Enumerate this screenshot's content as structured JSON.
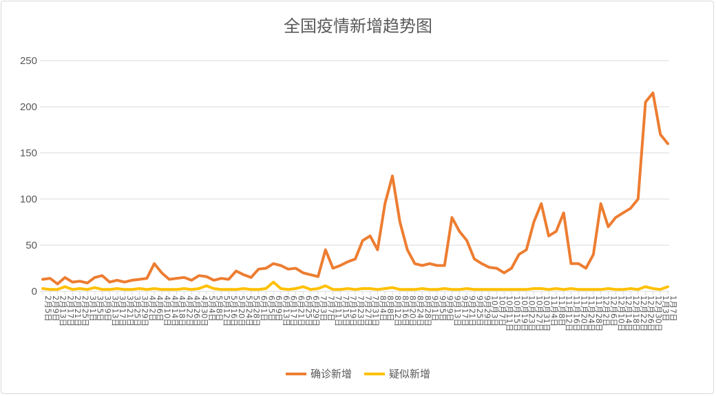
{
  "chart_data": {
    "type": "line",
    "title": "全国疫情新增趋势图",
    "xlabel": "",
    "ylabel": "",
    "ylim": [
      0,
      250
    ],
    "yticks": [
      0,
      50,
      100,
      150,
      200,
      250
    ],
    "grid": true,
    "legend_position": "bottom",
    "categories": [
      "2月5日",
      "2月9日",
      "2月13日",
      "2月17日",
      "2月21日",
      "2月25日",
      "3月1日",
      "3月5日",
      "3月9日",
      "3月13日",
      "3月17日",
      "3月21日",
      "3月25日",
      "3月29日",
      "4月2日",
      "4月6日",
      "4月10日",
      "4月14日",
      "4月18日",
      "4月22日",
      "4月26日",
      "4月30日",
      "5月4日",
      "5月8日",
      "5月12日",
      "5月16日",
      "5月20日",
      "5月24日",
      "5月28日",
      "6月1日",
      "6月5日",
      "6月9日",
      "6月13日",
      "6月17日",
      "6月21日",
      "6月25日",
      "6月29日",
      "7月3日",
      "7月7日",
      "7月11日",
      "7月15日",
      "7月19日",
      "7月23日",
      "7月27日",
      "7月31日",
      "8月4日",
      "8月8日",
      "8月12日",
      "8月16日",
      "8月20日",
      "8月24日",
      "8月28日",
      "9月1日",
      "9月5日",
      "9月9日",
      "9月13日",
      "9月17日",
      "9月21日",
      "9月25日",
      "9月29日",
      "10月3日",
      "10月7日",
      "10月11日",
      "10月15日",
      "10月19日",
      "10月23日",
      "10月27日",
      "10月31日",
      "11月4日",
      "11月8日",
      "11月12日",
      "11月16日",
      "11月20日",
      "11月24日",
      "11月28日",
      "12月2日",
      "12月6日",
      "12月10日",
      "12月14日",
      "12月18日",
      "12月22日",
      "12月26日",
      "12月30日",
      "1月3日",
      "1月7日"
    ],
    "series": [
      {
        "name": "确诊新增",
        "color": "#ED7D31",
        "values": [
          13,
          14,
          8,
          15,
          10,
          11,
          9,
          15,
          17,
          10,
          12,
          10,
          12,
          13,
          14,
          30,
          20,
          13,
          14,
          15,
          12,
          17,
          16,
          12,
          14,
          13,
          22,
          18,
          15,
          24,
          25,
          30,
          28,
          24,
          25,
          20,
          18,
          16,
          45,
          25,
          28,
          32,
          35,
          55,
          60,
          45,
          95,
          125,
          75,
          45,
          30,
          28,
          30,
          28,
          28,
          80,
          65,
          55,
          35,
          30,
          26,
          25,
          20,
          25,
          40,
          45,
          75,
          95,
          60,
          65,
          85,
          30,
          30,
          25,
          40,
          95,
          70,
          80,
          85,
          90,
          100,
          205,
          215,
          170,
          160
        ]
      },
      {
        "name": "疑似新增",
        "color": "#FFC000",
        "values": [
          3,
          2,
          2,
          5,
          2,
          3,
          2,
          4,
          2,
          2,
          3,
          2,
          2,
          3,
          2,
          3,
          2,
          2,
          2,
          3,
          2,
          3,
          6,
          3,
          2,
          2,
          2,
          3,
          2,
          2,
          3,
          10,
          3,
          2,
          3,
          5,
          2,
          3,
          6,
          2,
          2,
          3,
          2,
          3,
          3,
          2,
          3,
          4,
          2,
          2,
          2,
          3,
          2,
          2,
          3,
          2,
          2,
          3,
          2,
          2,
          2,
          2,
          2,
          2,
          2,
          2,
          3,
          3,
          2,
          3,
          2,
          3,
          2,
          2,
          2,
          2,
          3,
          2,
          2,
          3,
          2,
          5,
          3,
          2,
          5
        ]
      }
    ]
  }
}
